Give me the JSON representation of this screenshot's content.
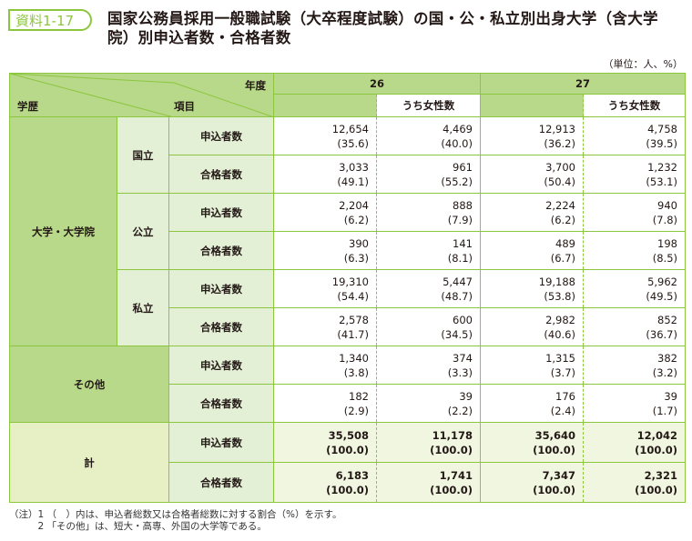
{
  "badge": "資料1-17",
  "title": "国家公務員採用一般職試験（大卒程度試験）の国・公・私立別出身大学（含大学院）別申込者数・合格者数",
  "unit": "（単位：人、%）",
  "header": {
    "year": "年度",
    "history": "学歴",
    "item": "項目",
    "years": [
      "26",
      "27"
    ],
    "female": "うち女性数"
  },
  "groups": {
    "univ": "大学・大学院",
    "national": "国立",
    "public": "公立",
    "private": "私立",
    "other": "その他",
    "total": "計"
  },
  "items": {
    "apply": "申込者数",
    "pass": "合格者数"
  },
  "rows": [
    {
      "v": [
        [
          "12,654",
          "(35.6)"
        ],
        [
          "4,469",
          "(40.0)"
        ],
        [
          "12,913",
          "(36.2)"
        ],
        [
          "4,758",
          "(39.5)"
        ]
      ]
    },
    {
      "v": [
        [
          "3,033",
          "(49.1)"
        ],
        [
          "961",
          "(55.2)"
        ],
        [
          "3,700",
          "(50.4)"
        ],
        [
          "1,232",
          "(53.1)"
        ]
      ]
    },
    {
      "v": [
        [
          "2,204",
          "(6.2)"
        ],
        [
          "888",
          "(7.9)"
        ],
        [
          "2,224",
          "(6.2)"
        ],
        [
          "940",
          "(7.8)"
        ]
      ]
    },
    {
      "v": [
        [
          "390",
          "(6.3)"
        ],
        [
          "141",
          "(8.1)"
        ],
        [
          "489",
          "(6.7)"
        ],
        [
          "198",
          "(8.5)"
        ]
      ]
    },
    {
      "v": [
        [
          "19,310",
          "(54.4)"
        ],
        [
          "5,447",
          "(48.7)"
        ],
        [
          "19,188",
          "(53.8)"
        ],
        [
          "5,962",
          "(49.5)"
        ]
      ]
    },
    {
      "v": [
        [
          "2,578",
          "(41.7)"
        ],
        [
          "600",
          "(34.5)"
        ],
        [
          "2,982",
          "(40.6)"
        ],
        [
          "852",
          "(36.7)"
        ]
      ]
    },
    {
      "v": [
        [
          "1,340",
          "(3.8)"
        ],
        [
          "374",
          "(3.3)"
        ],
        [
          "1,315",
          "(3.7)"
        ],
        [
          "382",
          "(3.2)"
        ]
      ]
    },
    {
      "v": [
        [
          "182",
          "(2.9)"
        ],
        [
          "39",
          "(2.2)"
        ],
        [
          "176",
          "(2.4)"
        ],
        [
          "39",
          "(1.7)"
        ]
      ]
    },
    {
      "v": [
        [
          "35,508",
          "(100.0)"
        ],
        [
          "11,178",
          "(100.0)"
        ],
        [
          "35,640",
          "(100.0)"
        ],
        [
          "12,042",
          "(100.0)"
        ]
      ]
    },
    {
      "v": [
        [
          "6,183",
          "(100.0)"
        ],
        [
          "1,741",
          "(100.0)"
        ],
        [
          "7,347",
          "(100.0)"
        ],
        [
          "2,321",
          "(100.0)"
        ]
      ]
    }
  ],
  "notes": [
    "（注）1 （　）内は、申込者総数又は合格者総数に対する割合（%）を示す。",
    "　　　2 「その他」は、短大・高専、外国の大学等である。"
  ],
  "colors": {
    "accent": "#8cc63f",
    "header": "#b8d98a",
    "light": "#e3f0d6"
  }
}
